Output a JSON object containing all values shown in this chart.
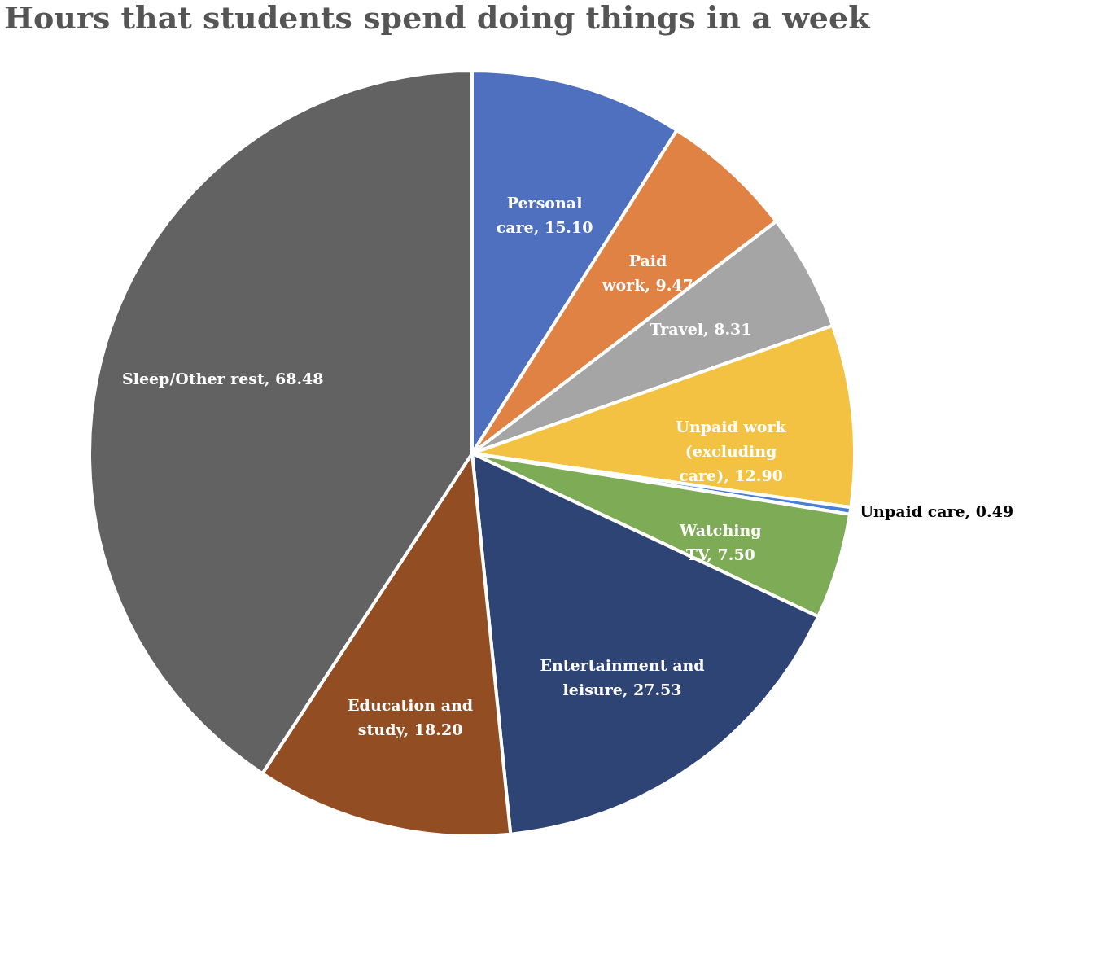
{
  "chart_data": {
    "type": "pie",
    "title": "Hours that students spend doing things in a week",
    "categories": [
      "Personal care",
      "Paid work",
      "Travel",
      "Unpaid work (excluding care)",
      "Unpaid care",
      "Watching TV",
      "Entertainment and leisure",
      "Education and study",
      "Sleep/Other rest"
    ],
    "values": [
      15.1,
      9.47,
      8.31,
      12.9,
      0.49,
      7.5,
      27.53,
      18.2,
      68.48
    ],
    "value_labels": [
      "15.10",
      "9.47",
      "8.31",
      "12.90",
      "0.49",
      "7.50",
      "27.53",
      "18.20",
      "68.48"
    ],
    "colors": [
      "#4f70be",
      "#df8244",
      "#a5a5a5",
      "#f4c243",
      "#4a7fd6",
      "#7eab55",
      "#2e4475",
      "#924d22",
      "#626262"
    ],
    "legend": false
  }
}
